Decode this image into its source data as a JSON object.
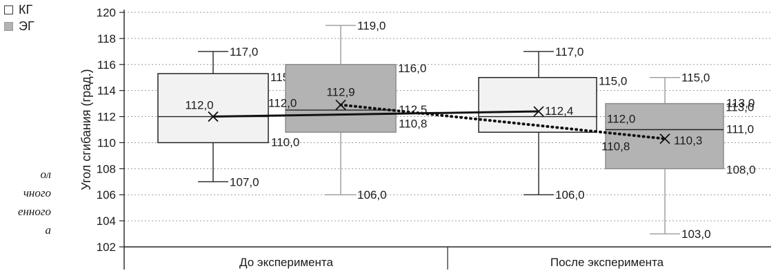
{
  "legend": {
    "kg_label": "КГ",
    "eg_label": "ЭГ"
  },
  "caption_fragments": [
    "ол",
    "чного",
    "енного",
    "а"
  ],
  "colors": {
    "kg_fill": "#f2f2f2",
    "eg_fill": "#b3b3b3",
    "kg_stroke": "#222222",
    "eg_stroke": "#9a9a9a",
    "grid": "#9a9a9a"
  },
  "chart_data": {
    "type": "box",
    "ylabel": "Угол сгибания (град.)",
    "ylim": [
      102,
      120
    ],
    "y_ticks": [
      "102",
      "104",
      "106",
      "108",
      "110",
      "112",
      "114",
      "116",
      "118",
      "120"
    ],
    "y_tick_values": [
      102,
      104,
      106,
      108,
      110,
      112,
      114,
      116,
      118,
      120
    ],
    "grid": "dotted-horizontal",
    "legend_position": "top-left",
    "categories": [
      "До эксперимента",
      "После эксперимента"
    ],
    "series": [
      {
        "name": "КГ",
        "boxes": [
          {
            "min": 107.0,
            "q1": 110.0,
            "median": 112.0,
            "q3": 115.3,
            "max": 117.0,
            "mean": 112.0,
            "labels": {
              "min": "107,0",
              "q1": "110,0",
              "median": "112,0",
              "q3": "115,3",
              "max": "117,0",
              "mean": "112,0"
            }
          },
          {
            "min": 106.0,
            "q1": 110.8,
            "median": 112.0,
            "q3": 115.0,
            "max": 117.0,
            "mean": 112.4,
            "labels": {
              "min": "106,0",
              "q1": "",
              "median": "",
              "q3": "115,0",
              "max": "117,0",
              "mean": "112,4"
            }
          }
        ]
      },
      {
        "name": "ЭГ",
        "boxes": [
          {
            "min": 106.0,
            "q1": 110.8,
            "median": 112.5,
            "q3": 116.0,
            "max": 119.0,
            "mean": 112.9,
            "labels": {
              "min": "106,0",
              "q1": "110,8",
              "median": "112,0",
              "q3": "116,0",
              "max": "119,0",
              "mean": "112,9",
              "median_right": "112,5"
            }
          },
          {
            "min": 103.0,
            "q1": 108.0,
            "median": 111.0,
            "q3": 113.0,
            "max": 115.0,
            "mean": 110.3,
            "labels": {
              "min": "103,0",
              "q1": "108,0",
              "median": "111,0",
              "q3": "113,0",
              "max": "115,0",
              "mean": "110,3",
              "q1_left": "110,8",
              "median_left": "112,0"
            }
          }
        ]
      }
    ],
    "trend_lines": [
      {
        "series": "КГ",
        "from": 112.0,
        "to": 112.4,
        "style": "solid"
      },
      {
        "series": "ЭГ",
        "from": 112.9,
        "to": 110.3,
        "style": "dotted"
      }
    ]
  }
}
